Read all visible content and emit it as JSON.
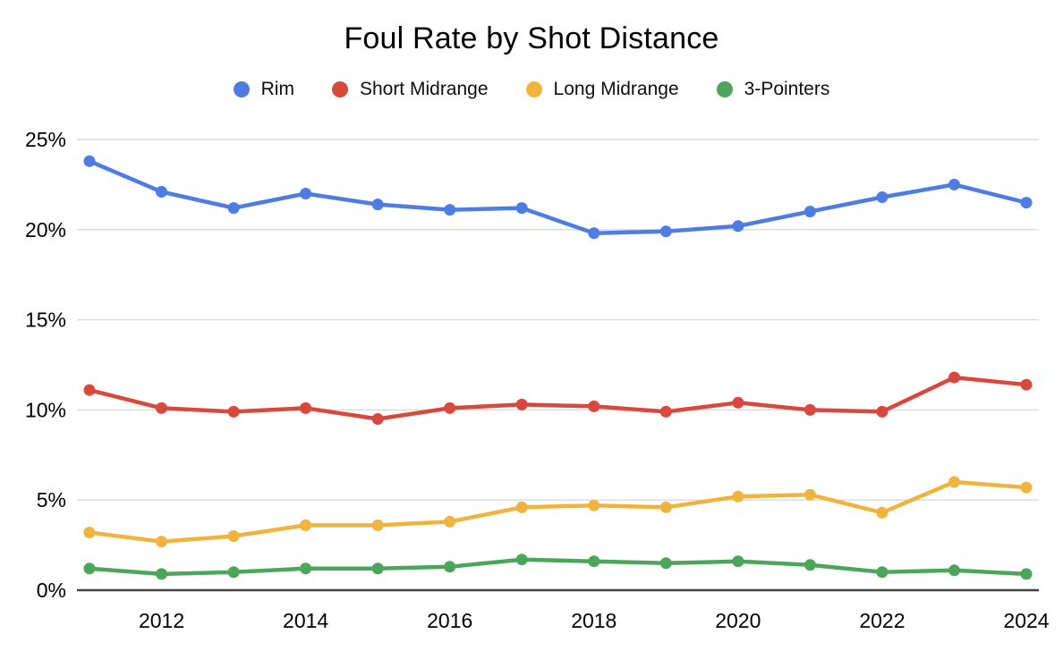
{
  "title": "Foul Rate by Shot Distance",
  "chart_data": {
    "type": "line",
    "x": [
      2011,
      2012,
      2013,
      2014,
      2015,
      2016,
      2017,
      2018,
      2019,
      2020,
      2021,
      2022,
      2023,
      2024
    ],
    "series": [
      {
        "name": "Rim",
        "color": "#4d7ce2",
        "values": [
          23.8,
          22.1,
          21.2,
          22.0,
          21.4,
          21.1,
          21.2,
          19.8,
          19.9,
          20.2,
          21.0,
          21.8,
          22.5,
          21.5
        ]
      },
      {
        "name": "Short Midrange",
        "color": "#d8483c",
        "values": [
          11.1,
          10.1,
          9.9,
          10.1,
          9.5,
          10.1,
          10.3,
          10.2,
          9.9,
          10.4,
          10.0,
          9.9,
          11.8,
          11.4
        ]
      },
      {
        "name": "Long Midrange",
        "color": "#f0b43e",
        "values": [
          3.2,
          2.7,
          3.0,
          3.6,
          3.6,
          3.8,
          4.6,
          4.7,
          4.6,
          5.2,
          5.3,
          4.3,
          6.0,
          5.7
        ]
      },
      {
        "name": "3-Pointers",
        "color": "#4ba55a",
        "values": [
          1.2,
          0.9,
          1.0,
          1.2,
          1.2,
          1.3,
          1.7,
          1.6,
          1.5,
          1.6,
          1.4,
          1.0,
          1.1,
          0.9
        ]
      }
    ],
    "ylim": [
      0,
      25
    ],
    "ytick_values": [
      0,
      5,
      10,
      15,
      20,
      25
    ],
    "ytick_labels": [
      "0%",
      "5%",
      "10%",
      "15%",
      "20%",
      "25%"
    ],
    "xtick_values": [
      2012,
      2014,
      2016,
      2018,
      2020,
      2022,
      2024
    ],
    "xtick_labels": [
      "2012",
      "2014",
      "2016",
      "2018",
      "2020",
      "2022",
      "2024"
    ],
    "grid": true,
    "legend_position": "top",
    "colors": {
      "gridline": "#d9d9d9",
      "axis_line": "#424242",
      "tick_text": "#000000",
      "background": "#ffffff"
    }
  }
}
